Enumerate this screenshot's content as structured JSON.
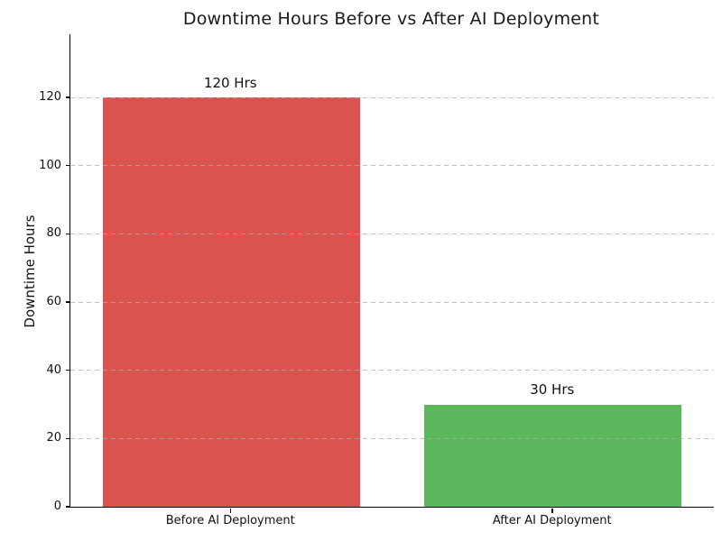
{
  "chart_data": {
    "type": "bar",
    "title": "Downtime Hours Before vs After AI Deployment",
    "xlabel": "",
    "ylabel": "Downtime Hours",
    "categories": [
      "Before AI Deployment",
      "After AI Deployment"
    ],
    "values": [
      120,
      30
    ],
    "value_labels": [
      "120 Hrs",
      "30 Hrs"
    ],
    "bar_colors": [
      "#d9534f",
      "#5cb85c"
    ],
    "yticks": [
      0,
      20,
      40,
      60,
      80,
      100,
      120
    ],
    "ylim": [
      0,
      138.5
    ],
    "grid": {
      "axis": "y",
      "style": "dashed",
      "color": "#cccccc"
    },
    "legend": null,
    "spine_color": "#000000",
    "background_color": "#ffffff",
    "title_color": "#1a1a1a"
  }
}
